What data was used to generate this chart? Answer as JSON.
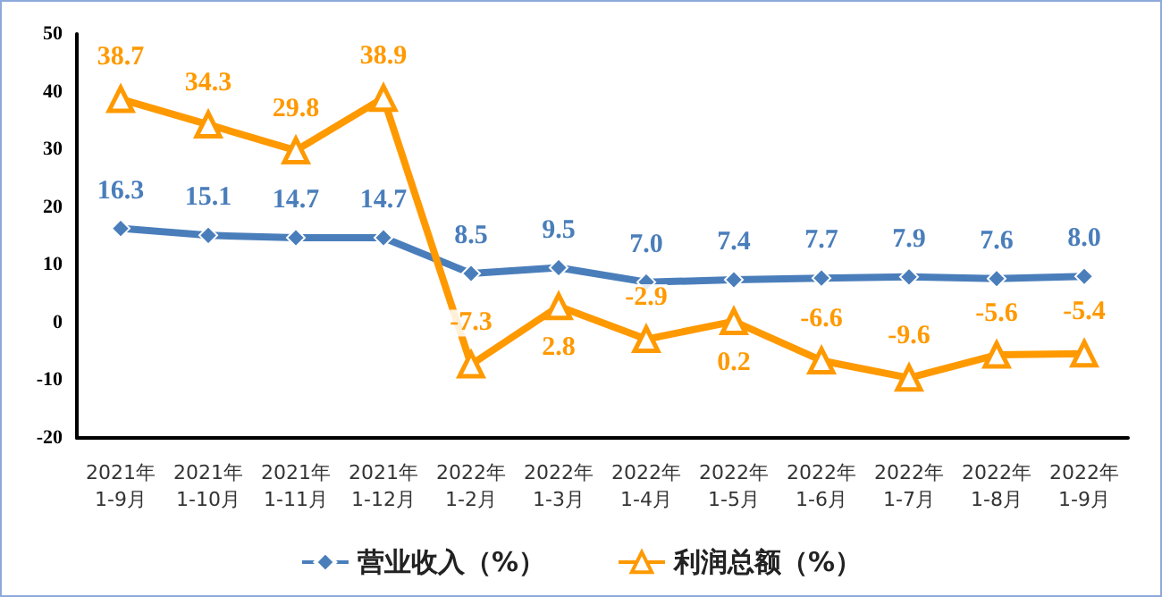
{
  "chart_data": {
    "type": "line",
    "categories": [
      "2021年\n1-9月",
      "2021年\n1-10月",
      "2021年\n1-11月",
      "2021年\n1-12月",
      "2022年\n1-2月",
      "2022年\n1-3月",
      "2022年\n1-4月",
      "2022年\n1-5月",
      "2022年\n1-6月",
      "2022年\n1-7月",
      "2022年\n1-8月",
      "2022年\n1-9月"
    ],
    "series": [
      {
        "name": "营业收入（%）",
        "color": "#4a7ebb",
        "marker": "diamond",
        "values": [
          16.3,
          15.1,
          14.7,
          14.7,
          8.5,
          9.5,
          7.0,
          7.4,
          7.7,
          7.9,
          7.6,
          8.0
        ],
        "value_labels": [
          "16.3",
          "15.1",
          "14.7",
          "14.7",
          "8.5",
          "9.5",
          "7.0",
          "7.4",
          "7.7",
          "7.9",
          "7.6",
          "8.0"
        ]
      },
      {
        "name": "利润总额（%）",
        "color": "#ff9900",
        "marker": "triangle",
        "values": [
          38.7,
          34.3,
          29.8,
          38.9,
          -7.3,
          2.8,
          -2.9,
          0.2,
          -6.6,
          -9.6,
          -5.6,
          -5.4
        ],
        "value_labels": [
          "38.7",
          "34.3",
          "29.8",
          "38.9",
          "-7.3",
          "2.8",
          "-2.9",
          "0.2",
          "-6.6",
          "-9.6",
          "-5.6",
          "-5.4"
        ]
      }
    ],
    "ylim": [
      -20,
      50
    ],
    "yticks": [
      -20,
      -10,
      0,
      10,
      20,
      30,
      40,
      50
    ],
    "grid": false,
    "legend": "bottom"
  }
}
